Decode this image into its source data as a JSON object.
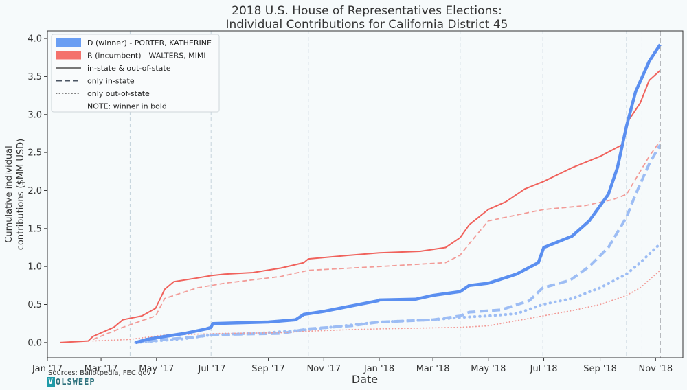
{
  "chart_data": {
    "type": "line",
    "title": [
      "2018 U.S. House of Representatives Elections:",
      "Individual Contributions for California District 45"
    ],
    "xlabel": "Date",
    "ylabel": [
      "Cumulative individual",
      "contributions ($MM USD)"
    ],
    "xlim": [
      "2017-01-01",
      "2018-12-01"
    ],
    "ylim": [
      -0.2,
      4.1
    ],
    "x_ticks": [
      {
        "date": "2017-01-01",
        "label": "Jan '17"
      },
      {
        "date": "2017-03-01",
        "label": "Mar '17"
      },
      {
        "date": "2017-05-01",
        "label": "May '17"
      },
      {
        "date": "2017-07-01",
        "label": "Jul '17"
      },
      {
        "date": "2017-09-01",
        "label": "Sep '17"
      },
      {
        "date": "2017-11-01",
        "label": "Nov '17"
      },
      {
        "date": "2018-01-01",
        "label": "Jan '18"
      },
      {
        "date": "2018-03-01",
        "label": "Mar '18"
      },
      {
        "date": "2018-05-01",
        "label": "May '18"
      },
      {
        "date": "2018-07-01",
        "label": "Jul '18"
      },
      {
        "date": "2018-09-01",
        "label": "Sep '18"
      },
      {
        "date": "2018-11-01",
        "label": "Nov '18"
      }
    ],
    "y_ticks": [
      0.0,
      0.5,
      1.0,
      1.5,
      2.0,
      2.5,
      3.0,
      3.5,
      4.0
    ],
    "event_lines": [
      "2017-04-02",
      "2017-06-30",
      "2017-10-15",
      "2018-03-31",
      "2018-06-30",
      "2018-09-30",
      "2018-10-17"
    ],
    "election_date": "2018-11-06",
    "legend_position": "upper-left",
    "legend": [
      {
        "label": "D (winner) - PORTER, KATHERINE",
        "kind": "patch",
        "color": "#6a9ef3"
      },
      {
        "label": "R (incumbent) - WALTERS, MIMI",
        "kind": "patch",
        "color": "#f4726c"
      },
      {
        "label": "in-state & out-of-state",
        "kind": "solid",
        "color": "#777777"
      },
      {
        "label": "only in-state",
        "kind": "dashed",
        "color": "#4b5563"
      },
      {
        "label": "only out-of-state",
        "kind": "dotted",
        "color": "#777777"
      },
      {
        "label": "NOTE: winner in bold",
        "kind": "none",
        "color": ""
      }
    ],
    "series": [
      {
        "party": "D",
        "subset": "in-state & out-of-state",
        "style": "solid",
        "bold": true,
        "color": "#5b8ff0",
        "points": [
          [
            "2017-04-08",
            0.0
          ],
          [
            "2017-04-20",
            0.04
          ],
          [
            "2017-05-10",
            0.08
          ],
          [
            "2017-06-01",
            0.12
          ],
          [
            "2017-06-25",
            0.18
          ],
          [
            "2017-06-30",
            0.2
          ],
          [
            "2017-07-02",
            0.25
          ],
          [
            "2017-08-01",
            0.26
          ],
          [
            "2017-09-01",
            0.27
          ],
          [
            "2017-10-01",
            0.3
          ],
          [
            "2017-10-10",
            0.37
          ],
          [
            "2017-11-01",
            0.41
          ],
          [
            "2017-12-01",
            0.48
          ],
          [
            "2017-12-31",
            0.55
          ],
          [
            "2018-01-01",
            0.56
          ],
          [
            "2018-02-10",
            0.57
          ],
          [
            "2018-03-01",
            0.62
          ],
          [
            "2018-03-31",
            0.67
          ],
          [
            "2018-04-10",
            0.75
          ],
          [
            "2018-05-01",
            0.78
          ],
          [
            "2018-06-01",
            0.9
          ],
          [
            "2018-06-25",
            1.05
          ],
          [
            "2018-07-01",
            1.25
          ],
          [
            "2018-08-01",
            1.4
          ],
          [
            "2018-08-20",
            1.6
          ],
          [
            "2018-09-10",
            1.95
          ],
          [
            "2018-09-20",
            2.3
          ],
          [
            "2018-09-30",
            2.85
          ],
          [
            "2018-10-10",
            3.3
          ],
          [
            "2018-10-25",
            3.7
          ],
          [
            "2018-11-06",
            3.92
          ]
        ]
      },
      {
        "party": "D",
        "subset": "only in-state",
        "style": "dashed",
        "bold": true,
        "color": "#9dbdf4",
        "points": [
          [
            "2017-04-08",
            0.0
          ],
          [
            "2017-05-10",
            0.04
          ],
          [
            "2017-06-10",
            0.07
          ],
          [
            "2017-06-30",
            0.1
          ],
          [
            "2017-08-01",
            0.11
          ],
          [
            "2017-09-15",
            0.12
          ],
          [
            "2017-10-15",
            0.18
          ],
          [
            "2017-12-01",
            0.22
          ],
          [
            "2018-01-01",
            0.27
          ],
          [
            "2018-03-01",
            0.3
          ],
          [
            "2018-03-31",
            0.35
          ],
          [
            "2018-04-10",
            0.4
          ],
          [
            "2018-05-15",
            0.43
          ],
          [
            "2018-06-15",
            0.55
          ],
          [
            "2018-06-30",
            0.72
          ],
          [
            "2018-07-30",
            0.82
          ],
          [
            "2018-08-20",
            1.0
          ],
          [
            "2018-09-10",
            1.25
          ],
          [
            "2018-09-30",
            1.65
          ],
          [
            "2018-10-10",
            1.95
          ],
          [
            "2018-10-25",
            2.35
          ],
          [
            "2018-11-06",
            2.6
          ]
        ]
      },
      {
        "party": "D",
        "subset": "only out-of-state",
        "style": "dotted",
        "bold": true,
        "color": "#9dbdf4",
        "points": [
          [
            "2017-04-08",
            0.0
          ],
          [
            "2017-06-01",
            0.05
          ],
          [
            "2017-06-30",
            0.1
          ],
          [
            "2017-09-01",
            0.13
          ],
          [
            "2017-10-15",
            0.17
          ],
          [
            "2017-12-01",
            0.23
          ],
          [
            "2018-01-01",
            0.27
          ],
          [
            "2018-03-01",
            0.3
          ],
          [
            "2018-03-31",
            0.33
          ],
          [
            "2018-05-01",
            0.35
          ],
          [
            "2018-06-01",
            0.38
          ],
          [
            "2018-06-30",
            0.5
          ],
          [
            "2018-08-01",
            0.58
          ],
          [
            "2018-09-01",
            0.72
          ],
          [
            "2018-09-30",
            0.9
          ],
          [
            "2018-10-15",
            1.05
          ],
          [
            "2018-11-06",
            1.3
          ]
        ]
      },
      {
        "party": "R",
        "subset": "in-state & out-of-state",
        "style": "solid",
        "bold": false,
        "color": "#f0625c",
        "points": [
          [
            "2017-01-15",
            0.0
          ],
          [
            "2017-02-15",
            0.02
          ],
          [
            "2017-02-20",
            0.08
          ],
          [
            "2017-03-15",
            0.2
          ],
          [
            "2017-03-25",
            0.3
          ],
          [
            "2017-04-15",
            0.35
          ],
          [
            "2017-04-30",
            0.45
          ],
          [
            "2017-05-10",
            0.7
          ],
          [
            "2017-05-20",
            0.8
          ],
          [
            "2017-06-15",
            0.85
          ],
          [
            "2017-06-30",
            0.88
          ],
          [
            "2017-07-15",
            0.9
          ],
          [
            "2017-08-15",
            0.92
          ],
          [
            "2017-09-15",
            0.98
          ],
          [
            "2017-10-10",
            1.05
          ],
          [
            "2017-10-15",
            1.1
          ],
          [
            "2017-12-01",
            1.15
          ],
          [
            "2018-01-01",
            1.18
          ],
          [
            "2018-02-15",
            1.2
          ],
          [
            "2018-03-15",
            1.25
          ],
          [
            "2018-03-31",
            1.38
          ],
          [
            "2018-04-10",
            1.55
          ],
          [
            "2018-05-01",
            1.75
          ],
          [
            "2018-05-20",
            1.85
          ],
          [
            "2018-06-10",
            2.02
          ],
          [
            "2018-07-01",
            2.12
          ],
          [
            "2018-08-01",
            2.3
          ],
          [
            "2018-09-01",
            2.45
          ],
          [
            "2018-09-25",
            2.6
          ],
          [
            "2018-10-01",
            2.9
          ],
          [
            "2018-10-15",
            3.15
          ],
          [
            "2018-10-25",
            3.45
          ],
          [
            "2018-11-06",
            3.58
          ]
        ]
      },
      {
        "party": "R",
        "subset": "only in-state",
        "style": "dashed",
        "bold": false,
        "color": "#f29b97",
        "points": [
          [
            "2017-02-20",
            0.04
          ],
          [
            "2017-03-25",
            0.2
          ],
          [
            "2017-04-30",
            0.35
          ],
          [
            "2017-05-10",
            0.58
          ],
          [
            "2017-06-15",
            0.72
          ],
          [
            "2017-07-15",
            0.78
          ],
          [
            "2017-09-15",
            0.87
          ],
          [
            "2017-10-15",
            0.95
          ],
          [
            "2017-12-01",
            0.98
          ],
          [
            "2018-01-01",
            1.0
          ],
          [
            "2018-03-15",
            1.05
          ],
          [
            "2018-03-31",
            1.15
          ],
          [
            "2018-04-10",
            1.3
          ],
          [
            "2018-05-01",
            1.6
          ],
          [
            "2018-06-10",
            1.7
          ],
          [
            "2018-07-01",
            1.75
          ],
          [
            "2018-08-15",
            1.8
          ],
          [
            "2018-09-15",
            1.88
          ],
          [
            "2018-09-30",
            1.95
          ],
          [
            "2018-10-15",
            2.25
          ],
          [
            "2018-10-25",
            2.45
          ],
          [
            "2018-11-06",
            2.65
          ]
        ]
      },
      {
        "party": "R",
        "subset": "only out-of-state",
        "style": "dotted",
        "bold": false,
        "color": "#f29b97",
        "points": [
          [
            "2017-02-20",
            0.02
          ],
          [
            "2017-04-01",
            0.04
          ],
          [
            "2017-05-10",
            0.1
          ],
          [
            "2017-07-15",
            0.12
          ],
          [
            "2017-09-15",
            0.13
          ],
          [
            "2017-10-15",
            0.15
          ],
          [
            "2017-12-01",
            0.17
          ],
          [
            "2018-01-01",
            0.18
          ],
          [
            "2018-03-31",
            0.2
          ],
          [
            "2018-05-01",
            0.22
          ],
          [
            "2018-06-30",
            0.35
          ],
          [
            "2018-08-01",
            0.42
          ],
          [
            "2018-09-01",
            0.5
          ],
          [
            "2018-09-30",
            0.62
          ],
          [
            "2018-10-15",
            0.72
          ],
          [
            "2018-11-06",
            0.95
          ]
        ]
      }
    ]
  },
  "footer": {
    "sources": "Sources: Ballotpedia, FEC.gov",
    "brand_mark": "V",
    "brand_rest": "OLSWEEP"
  }
}
